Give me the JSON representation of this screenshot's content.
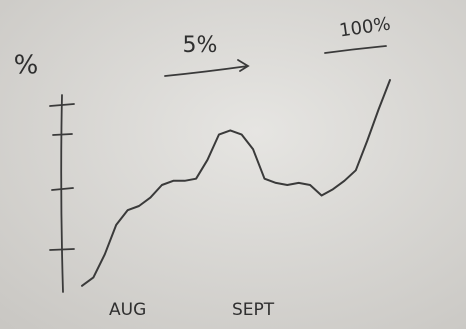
{
  "chart_data": {
    "type": "line",
    "y_label": "%",
    "annotations": [
      "5%",
      "100%"
    ],
    "categories": [
      null,
      null,
      null,
      null,
      "AUG",
      null,
      null,
      null,
      null,
      null,
      null,
      null,
      null,
      null,
      null,
      "SEPT",
      null,
      null,
      null,
      null,
      null,
      null,
      null,
      null,
      null,
      null,
      null,
      null
    ],
    "values": [
      2,
      6,
      17,
      31,
      38,
      40,
      44,
      50,
      52,
      52,
      53,
      62,
      74,
      76,
      74,
      67,
      53,
      51,
      50,
      51,
      50,
      45,
      48,
      52,
      57,
      71,
      86,
      100
    ],
    "color": "#3a3a3a",
    "ylim": [
      0,
      100
    ]
  }
}
